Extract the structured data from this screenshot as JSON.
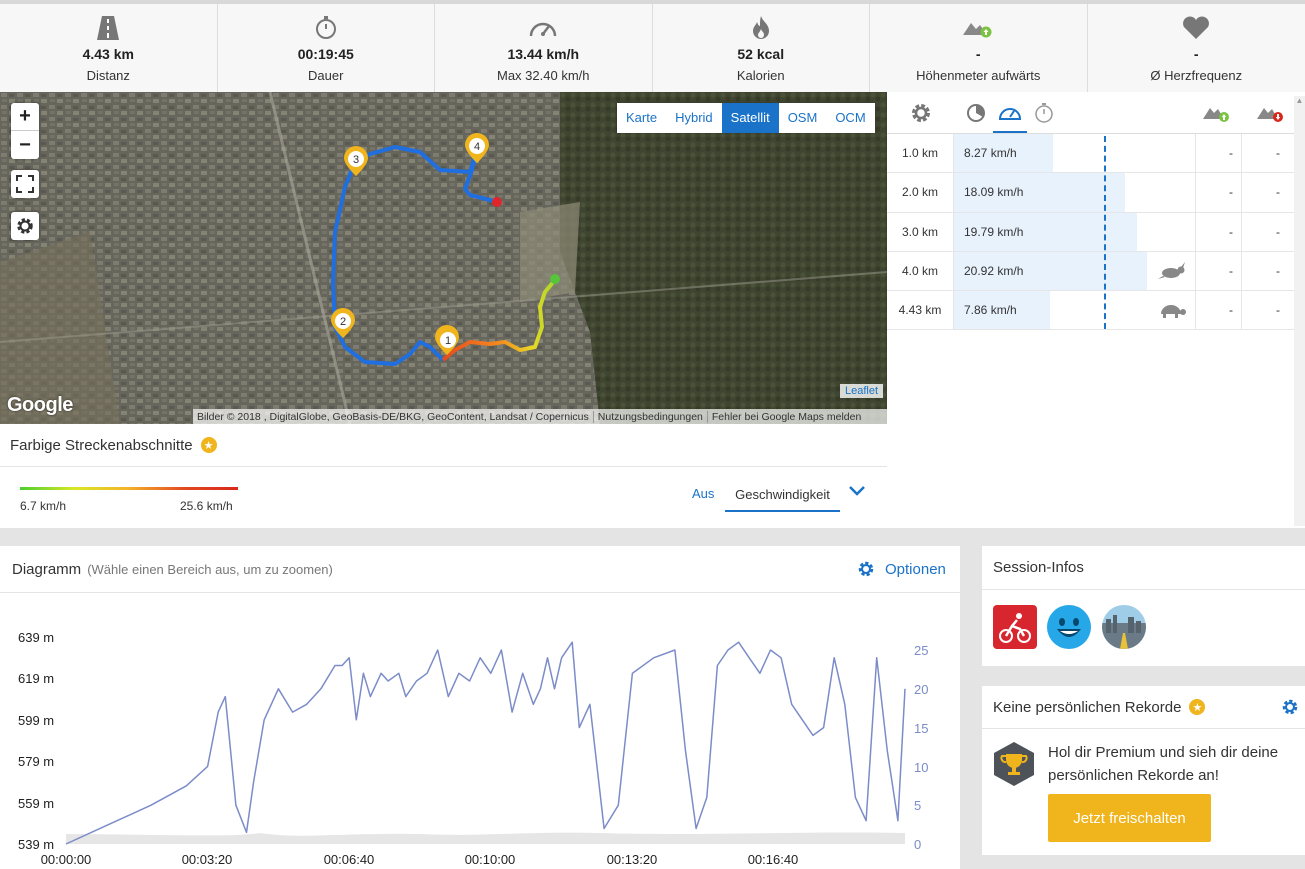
{
  "stats": [
    {
      "icon": "road-icon",
      "value": "4.43 km",
      "label": "Distanz"
    },
    {
      "icon": "stopwatch-icon",
      "value": "00:19:45",
      "label": "Dauer"
    },
    {
      "icon": "speedometer-icon",
      "value": "13.44 km/h",
      "label": "Max 32.40 km/h"
    },
    {
      "icon": "flame-icon",
      "value": "52 kcal",
      "label": "Kalorien"
    },
    {
      "icon": "elevation-up-icon",
      "value": "-",
      "label": "Höhenmeter aufwärts"
    },
    {
      "icon": "heart-icon",
      "value": "-",
      "label": "Ø Herzfrequenz"
    }
  ],
  "map": {
    "zoom_in": "+",
    "zoom_out": "−",
    "layers": [
      "Karte",
      "Hybrid",
      "Satellit",
      "OSM",
      "OCM"
    ],
    "active_layer": "Satellit",
    "markers": [
      "1",
      "2",
      "3",
      "4"
    ],
    "google": "Google",
    "leaflet": "Leaflet",
    "attribution": [
      "Bilder © 2018 , DigitalGlobe, GeoBasis-DE/BKG, GeoContent, Landsat / Copernicus",
      "Nutzungsbedingungen",
      "Fehler bei Google Maps melden"
    ]
  },
  "segments": {
    "title": "Farbige Streckenabschnitte",
    "min_label": "6.7 km/h",
    "max_label": "25.6 km/h",
    "off_label": "Aus",
    "selected": "Geschwindigkeit",
    "colors": [
      "#4ccd2e",
      "#d8e826",
      "#f3b22a",
      "#e24a1f",
      "#d8281c"
    ]
  },
  "splits": {
    "rows": [
      {
        "km": "1.0 km",
        "speed": "8.27 km/h",
        "fill": 0.41,
        "up": "-",
        "down": "-",
        "badge": ""
      },
      {
        "km": "2.0 km",
        "speed": "18.09 km/h",
        "fill": 0.71,
        "up": "-",
        "down": "-",
        "badge": ""
      },
      {
        "km": "3.0 km",
        "speed": "19.79 km/h",
        "fill": 0.76,
        "up": "-",
        "down": "-",
        "badge": ""
      },
      {
        "km": "4.0 km",
        "speed": "20.92 km/h",
        "fill": 0.8,
        "up": "-",
        "down": "-",
        "badge": "rabbit-icon"
      },
      {
        "km": "4.43 km",
        "speed": "7.86 km/h",
        "fill": 0.4,
        "up": "-",
        "down": "-",
        "badge": "turtle-icon"
      }
    ]
  },
  "diagram": {
    "title": "Diagramm",
    "hint": "(Wähle einen Bereich aus, um zu zoomen)",
    "options_label": "Optionen"
  },
  "chart_data": {
    "type": "line",
    "x_ticks": [
      "00:00:00",
      "00:03:20",
      "00:06:40",
      "00:10:00",
      "00:13:20",
      "00:16:40"
    ],
    "y_left_ticks": [
      "639 m",
      "619 m",
      "599 m",
      "579 m",
      "559 m",
      "539 m"
    ],
    "y_right_ticks": [
      "25",
      "20",
      "15",
      "10",
      "5",
      "0"
    ],
    "y_left_range": [
      539,
      639
    ],
    "y_right_range": [
      0,
      25
    ],
    "series": [
      {
        "color": "#7b8cc8",
        "axis": "right",
        "x_seconds": [
          0,
          60,
          120,
          170,
          200,
          215,
          225,
          240,
          255,
          265,
          280,
          300,
          320,
          340,
          360,
          380,
          390,
          400,
          410,
          420,
          430,
          445,
          455,
          470,
          480,
          495,
          510,
          525,
          540,
          555,
          570,
          585,
          600,
          615,
          630,
          645,
          660,
          670,
          680,
          690,
          700,
          715,
          725,
          740,
          760,
          780,
          800,
          830,
          860,
          875,
          890,
          905,
          920,
          935,
          950,
          965,
          980,
          995,
          1010,
          1025,
          1040,
          1055,
          1070,
          1085,
          1100,
          1115,
          1130,
          1145,
          1160,
          1175,
          1185
        ],
        "values": [
          0,
          2.5,
          5,
          7.5,
          10,
          17,
          19,
          5,
          1.5,
          8,
          16,
          20,
          17,
          18,
          20,
          23,
          23,
          24,
          16,
          22,
          19,
          22,
          21,
          22,
          19,
          21,
          22,
          25,
          19,
          22,
          21,
          24,
          22,
          25,
          17,
          22,
          18,
          20,
          24,
          20,
          24,
          26,
          15,
          18,
          2,
          5,
          22,
          24,
          25,
          12,
          2,
          6,
          23,
          25,
          26,
          24,
          22,
          25,
          24,
          18,
          16,
          14,
          15,
          24,
          18,
          6,
          3,
          24,
          12,
          3,
          20
        ]
      }
    ]
  },
  "session": {
    "title": "Session-Infos",
    "icons": [
      "cycling-icon",
      "happy-face-icon",
      "city-road-icon"
    ]
  },
  "records": {
    "title": "Keine persönlichen Rekorde",
    "text": "Hol dir Premium und sieh dir deine persönlichen Rekorde an!",
    "button": "Jetzt freischalten"
  }
}
